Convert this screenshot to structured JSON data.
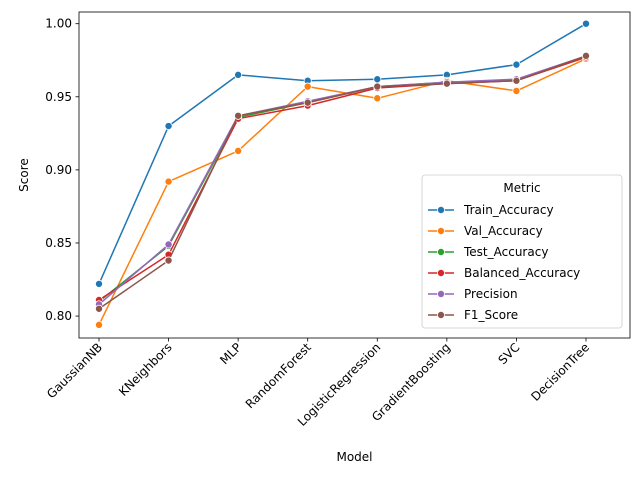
{
  "chart_data": {
    "type": "line",
    "xlabel": "Model",
    "ylabel": "Score",
    "categories": [
      "GaussianNB",
      "KNeighbors",
      "MLP",
      "RandomForest",
      "LogisticRegression",
      "GradientBoosting",
      "SVC",
      "DecisionTree"
    ],
    "ylim": [
      0.785,
      1.008
    ],
    "yticks": [
      "0.80",
      "0.85",
      "0.90",
      "0.95",
      "1.00"
    ],
    "grid": false,
    "legend": {
      "title": "Metric",
      "position": "lower-right"
    },
    "series": [
      {
        "name": "Train_Accuracy",
        "color": "#1f77b4",
        "values": [
          0.822,
          0.93,
          0.965,
          0.961,
          0.962,
          0.965,
          0.972,
          1.0
        ]
      },
      {
        "name": "Val_Accuracy",
        "color": "#ff7f0e",
        "values": [
          0.794,
          0.892,
          0.913,
          0.957,
          0.949,
          0.961,
          0.954,
          0.976
        ]
      },
      {
        "name": "Test_Accuracy",
        "color": "#2ca02c",
        "values": [
          0.81,
          0.848,
          0.936,
          0.946,
          0.957,
          0.96,
          0.961,
          0.978
        ]
      },
      {
        "name": "Balanced_Accuracy",
        "color": "#d62728",
        "values": [
          0.811,
          0.842,
          0.935,
          0.944,
          0.956,
          0.959,
          0.961,
          0.977
        ]
      },
      {
        "name": "Precision",
        "color": "#9467bd",
        "values": [
          0.808,
          0.849,
          0.937,
          0.947,
          0.957,
          0.96,
          0.962,
          0.978
        ]
      },
      {
        "name": "F1_Score",
        "color": "#8c564b",
        "values": [
          0.805,
          0.838,
          0.937,
          0.946,
          0.957,
          0.959,
          0.961,
          0.978
        ]
      }
    ]
  }
}
